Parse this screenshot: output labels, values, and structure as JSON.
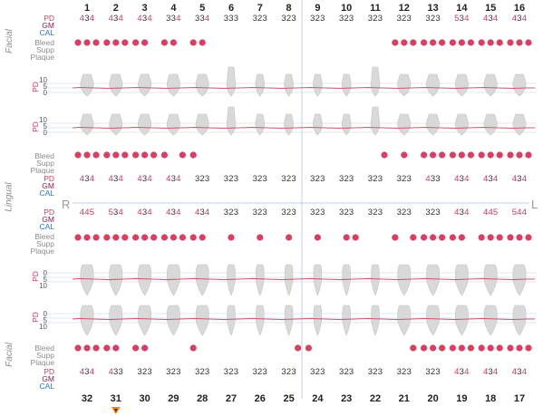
{
  "side_labels": {
    "facial": "Facial",
    "lingual": "Lingual"
  },
  "row_labels": {
    "pd": "PD",
    "gm": "GM",
    "cal": "CAL",
    "bleed": "Bleed",
    "supp": "Supp",
    "plaque": "Plaque"
  },
  "gauge": {
    "label": "PD",
    "ticks": [
      "10",
      "5",
      "0"
    ]
  },
  "quadrants": {
    "right": "R",
    "left": "L"
  },
  "upper_teeth": [
    "1",
    "2",
    "3",
    "4",
    "5",
    "6",
    "7",
    "8",
    "9",
    "10",
    "11",
    "12",
    "13",
    "14",
    "15",
    "16"
  ],
  "lower_teeth": [
    "32",
    "31",
    "30",
    "29",
    "28",
    "27",
    "26",
    "25",
    "24",
    "23",
    "22",
    "21",
    "20",
    "19",
    "18",
    "17"
  ],
  "upper_facial_pd": [
    "434",
    "434",
    "434",
    "334",
    "334",
    "333",
    "323",
    "323",
    "323",
    "323",
    "323",
    "323",
    "323",
    "534",
    "434",
    "434"
  ],
  "upper_lingual_pd": [
    "434",
    "434",
    "434",
    "434",
    "323",
    "323",
    "323",
    "323",
    "323",
    "323",
    "323",
    "323",
    "433",
    "434",
    "434",
    "434"
  ],
  "lower_lingual_pd": [
    "445",
    "534",
    "434",
    "434",
    "434",
    "323",
    "323",
    "323",
    "323",
    "323",
    "323",
    "323",
    "323",
    "434",
    "445",
    "544"
  ],
  "lower_facial_pd": [
    "434",
    "433",
    "323",
    "323",
    "323",
    "323",
    "323",
    "323",
    "323",
    "323",
    "323",
    "323",
    "323",
    "434",
    "434",
    "434"
  ],
  "upper_facial_bleed": [
    [
      1,
      1,
      1
    ],
    [
      1,
      1,
      1
    ],
    [
      1,
      1,
      0
    ],
    [
      1,
      1,
      0
    ],
    [
      1,
      1,
      0
    ],
    [
      0,
      0,
      0
    ],
    [
      0,
      0,
      0
    ],
    [
      0,
      0,
      0
    ],
    [
      0,
      0,
      0
    ],
    [
      0,
      0,
      0
    ],
    [
      0,
      0,
      0
    ],
    [
      1,
      1,
      1
    ],
    [
      1,
      1,
      1
    ],
    [
      1,
      1,
      1
    ],
    [
      1,
      1,
      1
    ],
    [
      1,
      1,
      1
    ]
  ],
  "upper_lingual_bleed": [
    [
      1,
      1,
      1
    ],
    [
      1,
      1,
      1
    ],
    [
      1,
      1,
      1
    ],
    [
      1,
      0,
      1
    ],
    [
      1,
      0,
      0
    ],
    [
      0,
      0,
      0
    ],
    [
      0,
      0,
      0
    ],
    [
      0,
      0,
      0
    ],
    [
      0,
      0,
      0
    ],
    [
      0,
      0,
      0
    ],
    [
      0,
      0,
      1
    ],
    [
      0,
      1,
      0
    ],
    [
      1,
      1,
      1
    ],
    [
      1,
      1,
      1
    ],
    [
      1,
      1,
      1
    ],
    [
      1,
      1,
      1
    ]
  ],
  "lower_lingual_bleed": [
    [
      1,
      1,
      1
    ],
    [
      1,
      1,
      1
    ],
    [
      1,
      1,
      1
    ],
    [
      1,
      1,
      1
    ],
    [
      1,
      1,
      0
    ],
    [
      0,
      1,
      0
    ],
    [
      0,
      1,
      0
    ],
    [
      0,
      1,
      0
    ],
    [
      0,
      1,
      0
    ],
    [
      0,
      1,
      1
    ],
    [
      0,
      0,
      0
    ],
    [
      1,
      0,
      1
    ],
    [
      1,
      1,
      1
    ],
    [
      1,
      1,
      0
    ],
    [
      1,
      1,
      1
    ],
    [
      1,
      1,
      1
    ]
  ],
  "lower_facial_bleed": [
    [
      1,
      1,
      1
    ],
    [
      1,
      1,
      0
    ],
    [
      1,
      1,
      0
    ],
    [
      0,
      0,
      0
    ],
    [
      1,
      0,
      0
    ],
    [
      0,
      0,
      0
    ],
    [
      0,
      0,
      0
    ],
    [
      0,
      0,
      1
    ],
    [
      1,
      0,
      0
    ],
    [
      0,
      0,
      0
    ],
    [
      0,
      0,
      0
    ],
    [
      0,
      0,
      1
    ],
    [
      1,
      1,
      1
    ],
    [
      1,
      1,
      1
    ],
    [
      1,
      1,
      1
    ],
    [
      1,
      1,
      1
    ]
  ],
  "selected_tooth": "31",
  "colors": {
    "pd_high": "#d23a5a",
    "pd_normal": "#333333",
    "bleed": "#d83f63",
    "gm": "#8b1a57",
    "cal": "#2f6fd6",
    "tooth_fill": "#d9d9d9",
    "gumline": "#d25a70",
    "grid": "#bfd3ea",
    "marker": "#f08a20"
  }
}
